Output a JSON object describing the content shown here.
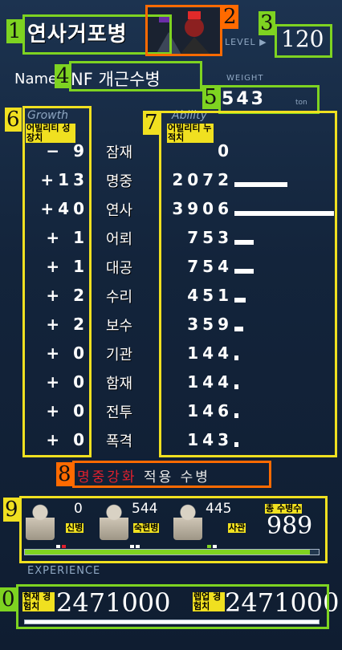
{
  "ship": {
    "title": "연사거포병",
    "level_label": "LEVEL ▶",
    "level": "120",
    "name_label": "Name",
    "name": "NF 개근수병",
    "weight_label": "WEIGHT",
    "weight": "▸543",
    "weight_unit": "ton"
  },
  "columns": {
    "growth_head": "Growth",
    "ability_head": "Ability",
    "growth_tag": "어빌리티 성장치",
    "ability_tag": "어빌리티 누적치"
  },
  "stats": [
    {
      "name": "잠재",
      "growth": "− 9",
      "ability": "0",
      "ability_num": 0
    },
    {
      "name": "명중",
      "growth": "+13",
      "ability": "2072",
      "ability_num": 2072
    },
    {
      "name": "연사",
      "growth": "+40",
      "ability": "3906",
      "ability_num": 3906
    },
    {
      "name": "어뢰",
      "growth": "+ 1",
      "ability": "753",
      "ability_num": 753
    },
    {
      "name": "대공",
      "growth": "+ 1",
      "ability": "754",
      "ability_num": 754
    },
    {
      "name": "수리",
      "growth": "+ 2",
      "ability": "451",
      "ability_num": 451
    },
    {
      "name": "보수",
      "growth": "+ 2",
      "ability": "359",
      "ability_num": 359
    },
    {
      "name": "기관",
      "growth": "+ 0",
      "ability": "144",
      "ability_num": 144
    },
    {
      "name": "함재",
      "growth": "+ 0",
      "ability": "144",
      "ability_num": 144
    },
    {
      "name": "전투",
      "growth": "+ 0",
      "ability": "146",
      "ability_num": 146
    },
    {
      "name": "폭격",
      "growth": "+ 0",
      "ability": "143",
      "ability_num": 143
    }
  ],
  "buff": {
    "highlight": "명중강화",
    "rest": "적용 수병"
  },
  "crew": {
    "groups": [
      {
        "label": "신병",
        "count": "0"
      },
      {
        "label": "숙련병",
        "count": "544"
      },
      {
        "label": "사관",
        "count": "445"
      }
    ],
    "total_label": "총 수병수",
    "total": "989",
    "fill_fraction": 0.97
  },
  "experience": {
    "label": "EXPERIENCE",
    "current_label": "현재 경험치",
    "current": "2471000",
    "levelup_label": "렙업 경험치",
    "levelup": "2471000",
    "fill_fraction": 1.0
  },
  "annotations": [
    "1",
    "2",
    "3",
    "4",
    "5",
    "6",
    "7",
    "8",
    "9",
    "0"
  ],
  "colors": {
    "green": "#7ed321",
    "yellow": "#f0e020",
    "orange": "#ff6a00",
    "buff_red": "#e0202e"
  }
}
